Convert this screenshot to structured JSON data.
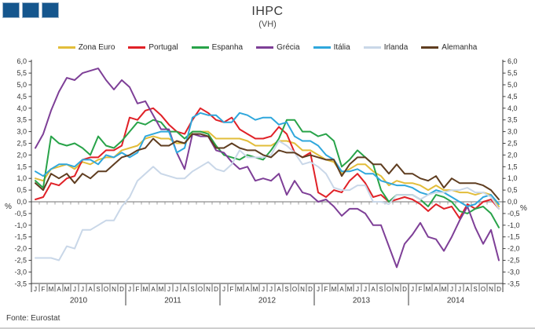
{
  "logo": {
    "square_count": 3,
    "fill": "#15568d",
    "border": "#9db4c9"
  },
  "footer": {
    "source_label": "Fonte: Eurostat"
  },
  "chart_data": {
    "type": "line",
    "title": "IHPC",
    "subtitle": "(VH)",
    "ylabel_left": "%",
    "ylabel_right": "%",
    "ylim": [
      -3.5,
      6.0
    ],
    "ytick_step": 0.5,
    "grid": "zero-line-only",
    "legend_position": "top",
    "decimal_separator": ",",
    "years": [
      "2010",
      "2011",
      "2012",
      "2013",
      "2014"
    ],
    "month_labels": [
      "J",
      "F",
      "M",
      "A",
      "M",
      "J",
      "J",
      "A",
      "S",
      "O",
      "N",
      "D"
    ],
    "series": [
      {
        "name": "Zona Euro",
        "color": "#e2bd3a",
        "values": [
          1.0,
          0.9,
          1.4,
          1.5,
          1.6,
          1.4,
          1.7,
          1.6,
          1.8,
          1.9,
          1.9,
          2.2,
          2.3,
          2.4,
          2.7,
          2.8,
          2.7,
          2.7,
          2.5,
          2.5,
          3.0,
          3.0,
          3.0,
          2.7,
          2.7,
          2.7,
          2.7,
          2.6,
          2.4,
          2.4,
          2.4,
          2.6,
          2.6,
          2.5,
          2.2,
          2.2,
          2.0,
          1.8,
          1.7,
          1.2,
          1.4,
          1.6,
          1.6,
          1.3,
          1.1,
          0.7,
          0.9,
          0.8,
          0.8,
          0.7,
          0.5,
          0.7,
          0.5,
          0.5,
          0.4,
          0.4,
          0.3,
          0.4,
          0.3,
          -0.2
        ]
      },
      {
        "name": "Portugal",
        "color": "#e02127",
        "values": [
          0.1,
          0.2,
          0.8,
          0.7,
          1.0,
          1.1,
          1.8,
          1.9,
          1.9,
          2.2,
          2.2,
          2.4,
          3.6,
          3.5,
          3.9,
          4.0,
          3.7,
          3.3,
          3.0,
          2.9,
          3.5,
          4.0,
          3.8,
          3.5,
          3.4,
          3.6,
          3.1,
          2.9,
          2.7,
          2.7,
          2.8,
          3.2,
          2.9,
          2.1,
          1.9,
          2.1,
          0.4,
          0.2,
          0.5,
          0.4,
          0.9,
          1.2,
          0.8,
          0.2,
          0.3,
          0.0,
          0.1,
          0.2,
          0.1,
          -0.1,
          -0.4,
          -0.1,
          -0.3,
          -0.2,
          -0.7,
          -0.1,
          -0.3,
          0.0,
          0.1,
          -0.3
        ]
      },
      {
        "name": "Espanha",
        "color": "#28a349",
        "values": [
          0.9,
          0.6,
          2.8,
          2.5,
          2.4,
          2.5,
          2.3,
          2.0,
          2.8,
          2.4,
          2.3,
          2.6,
          3.0,
          3.4,
          3.3,
          3.5,
          3.4,
          3.0,
          3.0,
          2.7,
          3.0,
          3.0,
          2.9,
          2.4,
          2.0,
          1.9,
          1.8,
          2.0,
          1.9,
          1.8,
          2.2,
          2.7,
          3.5,
          3.5,
          3.0,
          3.0,
          2.8,
          2.9,
          2.6,
          1.5,
          1.8,
          2.2,
          1.9,
          1.6,
          0.5,
          0.0,
          0.3,
          0.3,
          0.3,
          0.1,
          -0.2,
          0.3,
          0.2,
          0.0,
          -0.4,
          -0.5,
          -0.3,
          -0.2,
          -0.5,
          -1.1
        ]
      },
      {
        "name": "Grécia",
        "color": "#7e3f97",
        "values": [
          2.3,
          2.9,
          3.9,
          4.7,
          5.3,
          5.2,
          5.5,
          5.6,
          5.7,
          5.2,
          4.8,
          5.2,
          4.9,
          4.2,
          4.3,
          3.7,
          3.1,
          3.1,
          2.1,
          1.4,
          2.9,
          2.8,
          2.8,
          2.2,
          2.1,
          1.7,
          1.4,
          1.5,
          0.9,
          1.0,
          0.9,
          1.2,
          0.3,
          0.9,
          0.4,
          0.3,
          0.0,
          0.1,
          -0.2,
          -0.6,
          -0.3,
          -0.3,
          -0.5,
          -1.0,
          -1.0,
          -1.9,
          -2.8,
          -1.8,
          -1.4,
          -0.9,
          -1.5,
          -1.6,
          -2.1,
          -1.5,
          -0.8,
          -0.2,
          -1.1,
          -1.8,
          -1.2,
          -2.5
        ]
      },
      {
        "name": "Itália",
        "color": "#2fa7dc",
        "values": [
          1.3,
          1.1,
          1.4,
          1.6,
          1.6,
          1.5,
          1.8,
          1.8,
          1.6,
          2.0,
          1.9,
          2.1,
          1.9,
          2.1,
          2.8,
          2.9,
          3.0,
          3.0,
          2.1,
          2.3,
          3.6,
          3.8,
          3.7,
          3.7,
          3.4,
          3.4,
          3.8,
          3.7,
          3.5,
          3.6,
          3.6,
          3.3,
          3.4,
          2.8,
          2.6,
          2.6,
          2.4,
          2.0,
          1.8,
          1.3,
          1.3,
          1.4,
          1.2,
          1.2,
          0.9,
          0.8,
          0.7,
          0.7,
          0.6,
          0.4,
          0.3,
          0.5,
          0.4,
          0.2,
          0.0,
          -0.2,
          -0.1,
          0.2,
          0.3,
          -0.1
        ]
      },
      {
        "name": "Irlanda",
        "color": "#c9d7e8",
        "values": [
          -2.4,
          -2.4,
          -2.4,
          -2.5,
          -1.9,
          -2.0,
          -1.2,
          -1.2,
          -1.0,
          -0.8,
          -0.8,
          -0.2,
          0.2,
          0.9,
          1.2,
          1.5,
          1.2,
          1.1,
          1.0,
          1.0,
          1.3,
          1.5,
          1.7,
          1.4,
          1.3,
          1.6,
          2.2,
          1.9,
          1.9,
          1.9,
          2.0,
          2.6,
          2.4,
          2.1,
          1.6,
          1.7,
          1.5,
          1.2,
          0.6,
          0.5,
          0.5,
          0.7,
          0.7,
          0.0,
          0.0,
          -0.1,
          0.3,
          0.3,
          0.3,
          0.1,
          0.3,
          0.4,
          0.4,
          0.5,
          0.5,
          0.6,
          0.4,
          0.4,
          0.2,
          -0.3
        ]
      },
      {
        "name": "Alemanha",
        "color": "#5f3d20",
        "values": [
          0.8,
          0.5,
          1.2,
          1.0,
          1.2,
          0.8,
          1.2,
          1.0,
          1.3,
          1.3,
          1.6,
          1.9,
          2.0,
          2.2,
          2.3,
          2.7,
          2.4,
          2.4,
          2.6,
          2.5,
          2.9,
          2.9,
          2.8,
          2.3,
          2.3,
          2.5,
          2.3,
          2.2,
          2.2,
          2.0,
          1.9,
          2.2,
          2.1,
          2.1,
          1.9,
          2.0,
          1.9,
          1.8,
          1.8,
          1.1,
          1.6,
          1.9,
          1.9,
          1.6,
          1.6,
          1.2,
          1.6,
          1.2,
          1.2,
          1.0,
          0.9,
          1.1,
          0.6,
          1.0,
          0.8,
          0.8,
          0.8,
          0.7,
          0.5,
          0.1
        ]
      }
    ]
  }
}
